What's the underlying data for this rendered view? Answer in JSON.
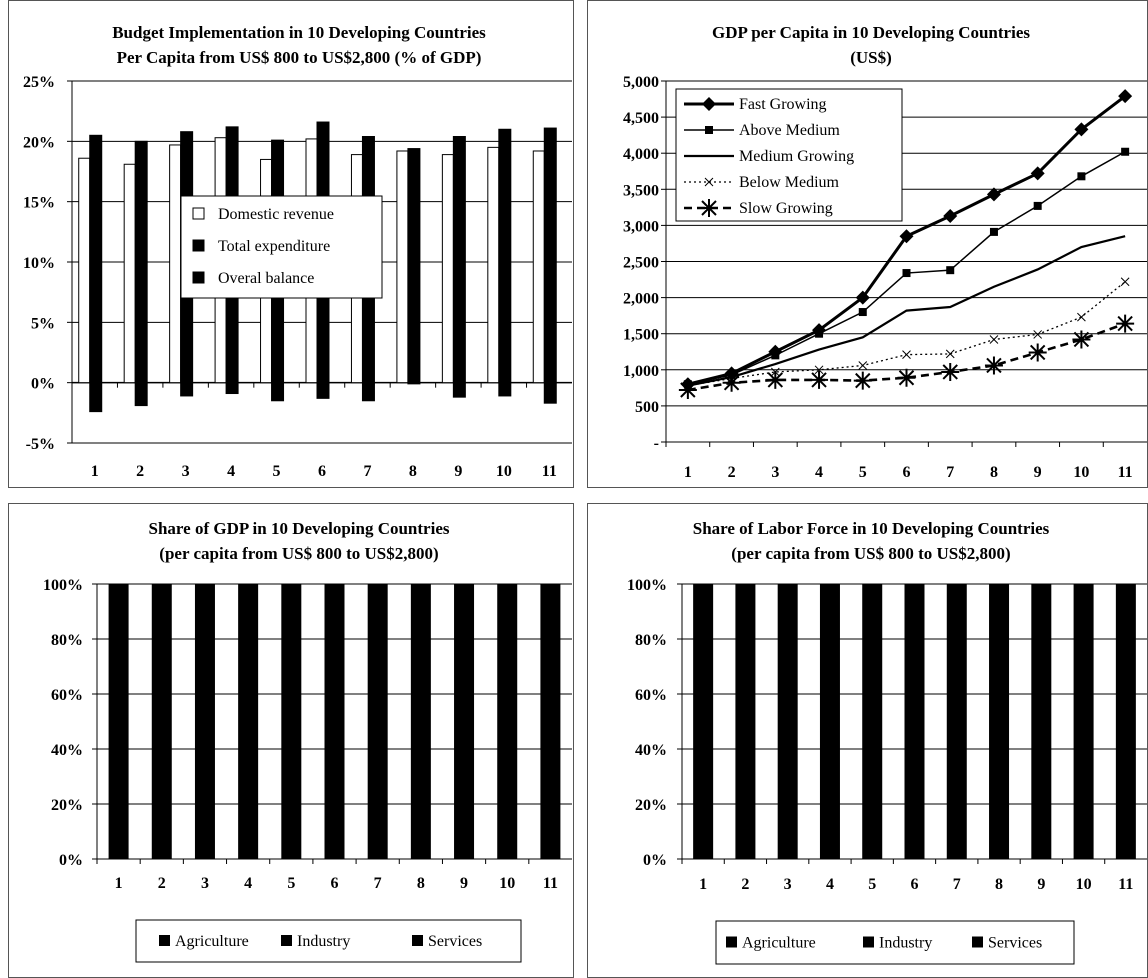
{
  "chart_data": [
    {
      "type": "bar",
      "title": "Budget Implementation in 10 Developing Countries",
      "subtitle": "Per Capita from US$ 800 to US$2,800 (% of GDP)",
      "categories": [
        "1",
        "2",
        "3",
        "4",
        "5",
        "6",
        "7",
        "8",
        "9",
        "10",
        "11"
      ],
      "y_ticks": [
        "25%",
        "20%",
        "15%",
        "10%",
        "5%",
        "0%",
        "-5%"
      ],
      "ylim": [
        -5,
        25
      ],
      "y_unit": "%",
      "grid": true,
      "legend_position": "center",
      "series": [
        {
          "name": "Domestic revenue",
          "color": "#ffffff",
          "values": [
            18.6,
            18.1,
            19.7,
            20.3,
            18.5,
            20.2,
            18.9,
            19.2,
            18.9,
            19.5,
            19.2
          ]
        },
        {
          "name": "Total expenditure",
          "color": "#000000",
          "values": [
            20.5,
            20.0,
            20.8,
            21.2,
            20.1,
            21.6,
            20.4,
            19.4,
            20.4,
            21.0,
            21.1
          ]
        },
        {
          "name": "Overal balance",
          "color": "#000000",
          "values": [
            -2.4,
            -1.9,
            -1.1,
            -0.9,
            -1.5,
            -1.3,
            -1.5,
            -0.1,
            -1.2,
            -1.1,
            -1.7
          ]
        }
      ]
    },
    {
      "type": "line",
      "title": "GDP per Capita in 10 Developing Countries",
      "subtitle": "(US$)",
      "x": [
        "1",
        "2",
        "3",
        "4",
        "5",
        "6",
        "7",
        "8",
        "9",
        "10",
        "11"
      ],
      "y_ticks": [
        "5,000",
        "4,500",
        "4,000",
        "3,500",
        "3,000",
        "2,500",
        "2,000",
        "1,500",
        "1,000",
        "500",
        "-"
      ],
      "ylim": [
        0,
        5000
      ],
      "grid": true,
      "legend_position": "top-left",
      "series": [
        {
          "name": "Fast Growing",
          "marker": "diamond",
          "line": "solid-thick",
          "values": [
            800,
            950,
            1250,
            1550,
            2000,
            2850,
            3130,
            3430,
            3720,
            4330,
            4790
          ]
        },
        {
          "name": "Above Medium",
          "marker": "square",
          "line": "solid-thin",
          "values": [
            800,
            930,
            1200,
            1500,
            1800,
            2340,
            2380,
            2910,
            3270,
            3680,
            4020
          ]
        },
        {
          "name": "Medium Growing",
          "marker": "none",
          "line": "solid",
          "values": [
            780,
            900,
            1080,
            1280,
            1450,
            1820,
            1870,
            2150,
            2390,
            2700,
            2850
          ]
        },
        {
          "name": "Below Medium",
          "marker": "x",
          "line": "dotted",
          "values": [
            780,
            880,
            970,
            1000,
            1060,
            1210,
            1220,
            1420,
            1490,
            1730,
            2220
          ]
        },
        {
          "name": "Slow Growing",
          "marker": "star",
          "line": "dashed",
          "values": [
            720,
            820,
            860,
            860,
            850,
            890,
            970,
            1060,
            1240,
            1420,
            1640
          ]
        }
      ]
    },
    {
      "type": "bar",
      "stacked": true,
      "title": "Share of GDP in 10 Developing Countries",
      "subtitle": "(per capita from US$ 800 to US$2,800)",
      "categories": [
        "1",
        "2",
        "3",
        "4",
        "5",
        "6",
        "7",
        "8",
        "9",
        "10",
        "11"
      ],
      "y_ticks": [
        "100%",
        "80%",
        "60%",
        "40%",
        "20%",
        "0%"
      ],
      "ylim": [
        0,
        100
      ],
      "grid": true,
      "legend_position": "bottom",
      "legend": [
        "Agriculture",
        "Industry",
        "Services"
      ],
      "series": [
        {
          "name": "Agriculture",
          "color": "#000000"
        },
        {
          "name": "Industry",
          "color": "#000000"
        },
        {
          "name": "Services",
          "color": "#000000"
        }
      ],
      "stack_totals": [
        100,
        100,
        100,
        100,
        100,
        100,
        100,
        100,
        100,
        100,
        100
      ]
    },
    {
      "type": "bar",
      "stacked": true,
      "title": "Share of Labor Force in 10 Developing Countries",
      "subtitle": "(per capita from US$ 800 to US$2,800)",
      "categories": [
        "1",
        "2",
        "3",
        "4",
        "5",
        "6",
        "7",
        "8",
        "9",
        "10",
        "11"
      ],
      "y_ticks": [
        "100%",
        "80%",
        "60%",
        "40%",
        "20%",
        "0%"
      ],
      "ylim": [
        0,
        100
      ],
      "grid": true,
      "legend_position": "bottom",
      "legend": [
        "Agriculture",
        "Industry",
        "Services"
      ],
      "series": [
        {
          "name": "Agriculture",
          "color": "#000000"
        },
        {
          "name": "Industry",
          "color": "#000000"
        },
        {
          "name": "Services",
          "color": "#000000"
        }
      ],
      "stack_totals": [
        100,
        100,
        100,
        100,
        100,
        100,
        100,
        100,
        100,
        100,
        100
      ]
    }
  ]
}
